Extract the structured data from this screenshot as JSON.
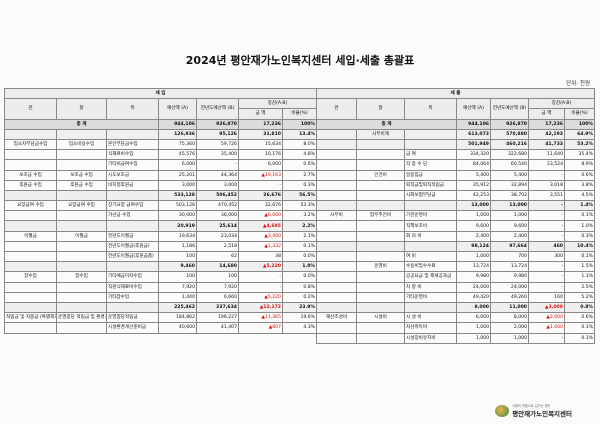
{
  "title": "2024년 평안재가노인복지센터 세입·세출 총괄표",
  "unit": "단위: 천원",
  "revenue": {
    "section": "세 입",
    "headers": {
      "kwan": "관",
      "hang": "항",
      "mok": "목",
      "budget": "예산액",
      "budget_unit": "(A)",
      "prev": "전년도예산액",
      "prev_unit": "(B)",
      "diff": "증감(A-B)",
      "amount": "금 액",
      "ratio": "비율(%)"
    },
    "total": {
      "label": "총 계",
      "budget": "944,106",
      "prev": "926,870",
      "amount": "17,236",
      "ratio": "100%"
    },
    "rows": [
      {
        "kwan": "",
        "hang": "",
        "mok": "",
        "budget": "126,936",
        "prev": "95,126",
        "amount": "31,810",
        "ratio": "13.4%",
        "sub": true
      },
      {
        "kwan": "입소자부담금수입",
        "hang": "입소비용수입",
        "mok": "본인부담금수입",
        "budget": "75,360",
        "prev": "59,726",
        "amount": "15,634",
        "ratio": "8.0%"
      },
      {
        "kwan": "",
        "hang": "",
        "mok": "식재료비수입",
        "budget": "45,576",
        "prev": "35,400",
        "amount": "10,176",
        "ratio": "4.8%"
      },
      {
        "kwan": "",
        "hang": "",
        "mok": "기타비급여수입",
        "budget": "6,000",
        "prev": "-",
        "amount": "6,000",
        "ratio": "0.6%"
      },
      {
        "kwan": "보조금 수입",
        "hang": "보조금 수입",
        "mok": "시도보조금",
        "budget": "25,201",
        "prev": "44,364",
        "amount": "▲19,163",
        "ratio": "2.7%",
        "neg": true
      },
      {
        "kwan": "후원금 수입",
        "hang": "후원금 수입",
        "mok": "비지정후원금",
        "budget": "3,000",
        "prev": "3,000",
        "amount": "-",
        "ratio": "0.3%"
      },
      {
        "kwan": "",
        "hang": "",
        "mok": "",
        "budget": "533,128",
        "prev": "506,452",
        "amount": "26,676",
        "ratio": "56.5%",
        "sub": true
      },
      {
        "kwan": "요양급여 수입",
        "hang": "요양급여 수입",
        "mok": "장기요양 급여수입",
        "budget": "503,128",
        "prev": "470,452",
        "amount": "32,676",
        "ratio": "53.3%"
      },
      {
        "kwan": "",
        "hang": "",
        "mok": "가산금 수입",
        "budget": "30,000",
        "prev": "36,000",
        "amount": "▲6,000",
        "ratio": "3.2%",
        "neg": true
      },
      {
        "kwan": "",
        "hang": "",
        "mok": "",
        "budget": "20,919",
        "prev": "25,614",
        "amount": "▲4,695",
        "ratio": "2.2%",
        "sub": true,
        "neg": true
      },
      {
        "kwan": "이월금",
        "hang": "이월금",
        "mok": "전년도이월금",
        "budget": "19,634",
        "prev": "23,034",
        "amount": "▲3,400",
        "ratio": "2.1%",
        "neg": true
      },
      {
        "kwan": "",
        "hang": "",
        "mok": "전년도이월금(후원금)",
        "budget": "1,186",
        "prev": "2,518",
        "amount": "▲1,332",
        "ratio": "0.1%",
        "neg": true
      },
      {
        "kwan": "",
        "hang": "",
        "mok": "전년도이월금(후원금품)",
        "budget": "100",
        "prev": "62",
        "amount": "38",
        "ratio": "0.0%"
      },
      {
        "kwan": "",
        "hang": "",
        "mok": "",
        "budget": "9,460",
        "prev": "14,680",
        "amount": "▲5,220",
        "ratio": "1.0%",
        "sub": true,
        "neg": true
      },
      {
        "kwan": "잡수입",
        "hang": "잡수입",
        "mok": "기타예금이자수입",
        "budget": "100",
        "prev": "100",
        "amount": "-",
        "ratio": "0.0%"
      },
      {
        "kwan": "",
        "hang": "",
        "mok": "직원식재료비수입",
        "budget": "7,920",
        "prev": "7,920",
        "amount": "-",
        "ratio": "0.8%"
      },
      {
        "kwan": "",
        "hang": "",
        "mok": "기타잡수입",
        "budget": "1,440",
        "prev": "6,660",
        "amount": "▲5,220",
        "ratio": "0.2%",
        "neg": true
      },
      {
        "kwan": "",
        "hang": "",
        "mok": "",
        "budget": "225,462",
        "prev": "237,634",
        "amount": "▲12,172",
        "ratio": "23.9%",
        "sub": true,
        "neg": true
      },
      {
        "kwan": "적립금 및 자충금 (특별회계)",
        "hang": "운영충당 적립금 및 환경개선 준비금",
        "mok": "운영충당적립금",
        "budget": "184,862",
        "prev": "196,227",
        "amount": "▲11,365",
        "ratio": "19.6%",
        "neg": true
      },
      {
        "kwan": "",
        "hang": "",
        "mok": "시설환경개선준비금",
        "budget": "40,600",
        "prev": "41,407",
        "amount": "▲807",
        "ratio": "4.3%",
        "neg": true
      }
    ]
  },
  "expense": {
    "section": "세 출",
    "headers": {
      "kwan": "관",
      "hang": "항",
      "mok": "목",
      "budget": "예산액",
      "budget_unit": "(A)",
      "prev": "전년도예산액",
      "prev_unit": "(B)",
      "diff": "증감(A-B)",
      "amount": "금 액",
      "ratio": "비율(%)"
    },
    "total": {
      "label": "총 계",
      "budget": "944,106",
      "prev": "926,870",
      "amount": "17,236",
      "ratio": "100%"
    },
    "rows": [
      {
        "kwan": "",
        "hang": "사무비계",
        "mok": "",
        "budget": "613,073",
        "prev": "570,880",
        "amount": "42,193",
        "ratio": "64.9%",
        "sub": true
      },
      {
        "kwan": "",
        "hang": "",
        "mok": "",
        "budget": "501,949",
        "prev": "460,216",
        "amount": "41,733",
        "ratio": "53.2%",
        "sub": true
      },
      {
        "kwan": "",
        "hang": "",
        "mok": "급 여",
        "budget": "334,320",
        "prev": "322,680",
        "amount": "11,640",
        "ratio": "35.4%"
      },
      {
        "kwan": "",
        "hang": "",
        "mok": "각 종 수 당",
        "budget": "84,064",
        "prev": "60,540",
        "amount": "23,524",
        "ratio": "8.9%"
      },
      {
        "kwan": "",
        "hang": "인건비",
        "mok": "일용임금",
        "budget": "5,400",
        "prev": "5,400",
        "amount": "-",
        "ratio": "0.6%"
      },
      {
        "kwan": "",
        "hang": "",
        "mok": "퇴직금및퇴직적립금",
        "budget": "35,912",
        "prev": "32,894",
        "amount": "3,018",
        "ratio": "3.8%"
      },
      {
        "kwan": "",
        "hang": "",
        "mok": "사회보험부담금",
        "budget": "42,253",
        "prev": "38,702",
        "amount": "3,551",
        "ratio": "4.5%"
      },
      {
        "kwan": "",
        "hang": "",
        "mok": "",
        "budget": "13,000",
        "prev": "13,000",
        "amount": "-",
        "ratio": "1.4%",
        "sub": true
      },
      {
        "kwan": "사무비",
        "hang": "업무추진비",
        "mok": "기관운영비",
        "budget": "1,000",
        "prev": "1,000",
        "amount": "-",
        "ratio": "0.1%"
      },
      {
        "kwan": "",
        "hang": "",
        "mok": "직책보조비",
        "budget": "9,600",
        "prev": "9,600",
        "amount": "-",
        "ratio": "1.0%"
      },
      {
        "kwan": "",
        "hang": "",
        "mok": "회 의 비",
        "budget": "2,400",
        "prev": "2,400",
        "amount": "-",
        "ratio": "0.3%"
      },
      {
        "kwan": "",
        "hang": "",
        "mok": "",
        "budget": "98,124",
        "prev": "97,664",
        "amount": "460",
        "ratio": "10.4%",
        "sub": true
      },
      {
        "kwan": "",
        "hang": "",
        "mok": "여 비",
        "budget": "1,000",
        "prev": "700",
        "amount": "300",
        "ratio": "0.1%"
      },
      {
        "kwan": "",
        "hang": "운영비",
        "mok": "수용비및수수료",
        "budget": "13,724",
        "prev": "13,724",
        "amount": "-",
        "ratio": "1.5%"
      },
      {
        "kwan": "",
        "hang": "",
        "mok": "공공요금 및 제세공과금",
        "budget": "9,980",
        "prev": "9,980",
        "amount": "-",
        "ratio": "1.1%"
      },
      {
        "kwan": "",
        "hang": "",
        "mok": "차 량 비",
        "budget": "24,000",
        "prev": "24,000",
        "amount": "-",
        "ratio": "2.5%"
      },
      {
        "kwan": "",
        "hang": "",
        "mok": "기타운영비",
        "budget": "49,420",
        "prev": "49,260",
        "amount": "160",
        "ratio": "5.2%"
      },
      {
        "kwan": "",
        "hang": "",
        "mok": "",
        "budget": "8,000",
        "prev": "11,000",
        "amount": "▲3,000",
        "ratio": "0.8%",
        "sub": true,
        "neg": true
      },
      {
        "kwan": "재산조성비",
        "hang": "시설비",
        "mok": "시 설 비",
        "budget": "6,000",
        "prev": "8,000",
        "amount": "▲2,000",
        "ratio": "0.6%",
        "neg": true
      },
      {
        "kwan": "",
        "hang": "",
        "mok": "자산취득비",
        "budget": "1,000",
        "prev": "2,000",
        "amount": "▲1,000",
        "ratio": "0.1%",
        "neg": true
      },
      {
        "kwan": "",
        "hang": "",
        "mok": "시설장비유지비",
        "budget": "1,000",
        "prev": "1,000",
        "amount": "-",
        "ratio": "0.1%"
      }
    ]
  },
  "logo": {
    "subtitle": "사랑의 마음으로 섬기는 센터",
    "name": "평안재가노인복지센터"
  }
}
